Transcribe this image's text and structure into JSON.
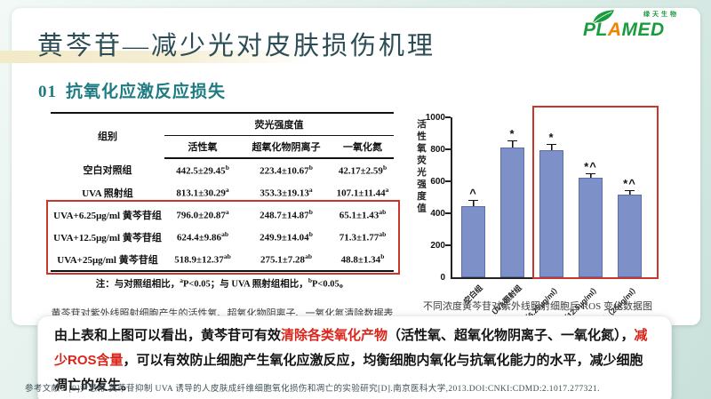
{
  "slide": {
    "title": "黄芩苷—减少光对皮肤损伤机理",
    "section_number": "01",
    "section_title": "抗氧化应激反应损失",
    "footer": "参考文献：[9]尹慧彬.黄芩苷抑制 UVA 诱导的人皮肤成纤维细胞氧化损伤和凋亡的实验研究[D].南京医科大学,2013.DOI:CNKI:CDMD:2.1017.277321."
  },
  "logo": {
    "tagline": "绿天生物",
    "brand_segments": [
      {
        "t": "PL",
        "c": "green"
      },
      {
        "t": "A",
        "c": "orange"
      },
      {
        "t": "MED",
        "c": "green"
      }
    ]
  },
  "table": {
    "caption": "黄芩苷对紫外线照射细胞产生的活性氧、超氧化物阴离子、一氧化氮清除数据表",
    "header": {
      "group_col": "组别",
      "span_header": "荧光强度值",
      "sub_cols": [
        "活性氧",
        "超氧化物阴离子",
        "一氧化氮"
      ]
    },
    "rows": [
      {
        "group": "空白对照组",
        "cells": [
          {
            "v": "442.5±29.45",
            "sup": "b"
          },
          {
            "v": "223.4±10.67",
            "sup": "b"
          },
          {
            "v": "42.17±2.59",
            "sup": "b"
          }
        ]
      },
      {
        "group": "UVA 照射组",
        "cells": [
          {
            "v": "813.1±30.29",
            "sup": "a"
          },
          {
            "v": "353.3±19.13",
            "sup": "a"
          },
          {
            "v": "107.1±11.44",
            "sup": "a"
          }
        ]
      },
      {
        "group": "UVA+6.25μg/ml 黄芩苷组",
        "cells": [
          {
            "v": "796.0±20.87",
            "sup": "a"
          },
          {
            "v": "248.7±14.87",
            "sup": "b"
          },
          {
            "v": "65.1±1.43",
            "sup": "ab"
          }
        ]
      },
      {
        "group": "UVA+12.5μg/ml 黄芩苷组",
        "cells": [
          {
            "v": "624.4±9.86",
            "sup": "ab"
          },
          {
            "v": "249.9±14.04",
            "sup": "b"
          },
          {
            "v": "71.3±1.77",
            "sup": "ab"
          }
        ]
      },
      {
        "group": "UVA+25μg/ml 黄芩苷组",
        "cells": [
          {
            "v": "518.9±12.37",
            "sup": "ab"
          },
          {
            "v": "275.1±7.28",
            "sup": "ab"
          },
          {
            "v": "48.8±1.34",
            "sup": "b"
          }
        ]
      }
    ],
    "note_parts": [
      {
        "t": "注：与对照组相比，"
      },
      {
        "t": "a",
        "sup": true
      },
      {
        "t": "P<0.05；与 UVA 照射组相比，"
      },
      {
        "t": "b",
        "sup": true
      },
      {
        "t": "P<0.05。"
      }
    ],
    "highlight_rows": {
      "from": 2,
      "to": 4
    }
  },
  "chart_data": {
    "type": "bar",
    "title": "不同浓度黄芩苷对紫外线照射细胞后 ROS 变化数据图",
    "ylabel": "活性氧荧光强度值",
    "xlabel": "",
    "ylim": [
      0,
      1000
    ],
    "yticks": [
      0,
      200,
      400,
      600,
      800,
      1000
    ],
    "categories": [
      "空白组",
      "UVA照射组",
      "UVA+黄芩苷（6.25μg/ml）",
      "UVA+黄芩苷（12.5μg/ml）",
      "UVA+黄芩苷（25μg/ml）"
    ],
    "values": [
      442,
      813,
      796,
      624,
      519
    ],
    "errors": [
      29,
      30,
      21,
      10,
      12
    ],
    "annotations": [
      "^",
      "*",
      "*",
      "*^",
      "*^"
    ],
    "grid": false,
    "legend": false,
    "highlight_box": {
      "from_index": 2,
      "to_index": 4
    }
  },
  "callout": {
    "segments": [
      {
        "t": "由上表和上图可以看出，黄芩苷可有效",
        "red": false
      },
      {
        "t": "清除各类氧化产物",
        "red": true
      },
      {
        "t": "（活性氧、超氧化物阴离子、一氧化氮），",
        "red": false
      },
      {
        "t": "减少ROS含量",
        "red": true
      },
      {
        "t": "，可以有效防止细胞产生氧化应激反应，均衡细胞内氧化与抗氧化能力的水平，减少细胞凋亡的发生。",
        "red": false
      }
    ]
  },
  "colors": {
    "accent_red": "#c8372a",
    "text_red": "#d9251b",
    "teal": "#1f7b82",
    "title": "#2c4d55",
    "bar_fill": "#7e90c8",
    "logo_green": "#1a9c3e",
    "logo_orange": "#f08300",
    "background_green": "#d3e7e1",
    "title_highlight": "#f2e9c5"
  }
}
